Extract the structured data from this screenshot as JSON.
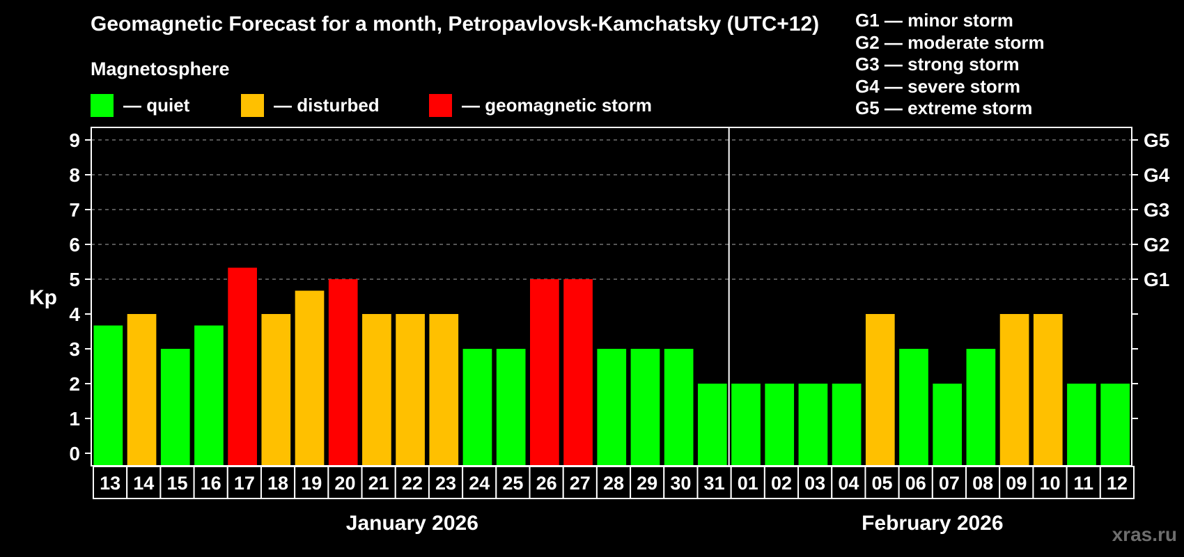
{
  "header": {
    "title": "Geomagnetic Forecast for a month, Petropavlovsk-Kamchatsky (UTC+12)",
    "subtitle": "Magnetosphere"
  },
  "legend": [
    {
      "label": "— quiet",
      "color": "#00ff00"
    },
    {
      "label": "— disturbed",
      "color": "#ffc000"
    },
    {
      "label": "— geomagnetic storm",
      "color": "#ff0000"
    }
  ],
  "storm_scale": [
    "G1 — minor storm",
    "G2 — moderate storm",
    "G3 — strong storm",
    "G4 — severe storm",
    "G5 — extreme storm"
  ],
  "months": [
    "January 2026",
    "February 2026"
  ],
  "watermark": "xras.ru",
  "chart_data": {
    "type": "bar",
    "title": "Geomagnetic Forecast for a month, Petropavlovsk-Kamchatsky (UTC+12)",
    "xlabel": "",
    "ylabel": "Kp",
    "ylim": [
      0,
      9
    ],
    "yticks": [
      0,
      1,
      2,
      3,
      4,
      5,
      6,
      7,
      8,
      9
    ],
    "right_axis_labels": [
      {
        "kp": 5,
        "label": "G1"
      },
      {
        "kp": 6,
        "label": "G2"
      },
      {
        "kp": 7,
        "label": "G3"
      },
      {
        "kp": 8,
        "label": "G4"
      },
      {
        "kp": 9,
        "label": "G5"
      }
    ],
    "grid": "dashed horizontal at Kp 5-9",
    "categories": [
      "13",
      "14",
      "15",
      "16",
      "17",
      "18",
      "19",
      "20",
      "21",
      "22",
      "23",
      "24",
      "25",
      "26",
      "27",
      "28",
      "29",
      "30",
      "31",
      "01",
      "02",
      "03",
      "04",
      "05",
      "06",
      "07",
      "08",
      "09",
      "10",
      "11",
      "12"
    ],
    "values": [
      3.67,
      4,
      3,
      3.67,
      5.33,
      4,
      4.67,
      5,
      4,
      4,
      4,
      3,
      3,
      5,
      5,
      3,
      3,
      3,
      2,
      2,
      2,
      2,
      2,
      4,
      3,
      2,
      3,
      4,
      4,
      2,
      2
    ],
    "status": [
      "quiet",
      "disturbed",
      "quiet",
      "quiet",
      "storm",
      "disturbed",
      "disturbed",
      "storm",
      "disturbed",
      "disturbed",
      "disturbed",
      "quiet",
      "quiet",
      "storm",
      "storm",
      "quiet",
      "quiet",
      "quiet",
      "quiet",
      "quiet",
      "quiet",
      "quiet",
      "quiet",
      "disturbed",
      "quiet",
      "quiet",
      "quiet",
      "disturbed",
      "disturbed",
      "quiet",
      "quiet"
    ],
    "month_groups": [
      {
        "label": "January 2026",
        "count": 19
      },
      {
        "label": "February 2026",
        "count": 12
      }
    ],
    "colors": {
      "quiet": "#00ff00",
      "disturbed": "#ffc000",
      "storm": "#ff0000"
    },
    "legend": [
      "quiet",
      "disturbed",
      "geomagnetic storm"
    ]
  }
}
